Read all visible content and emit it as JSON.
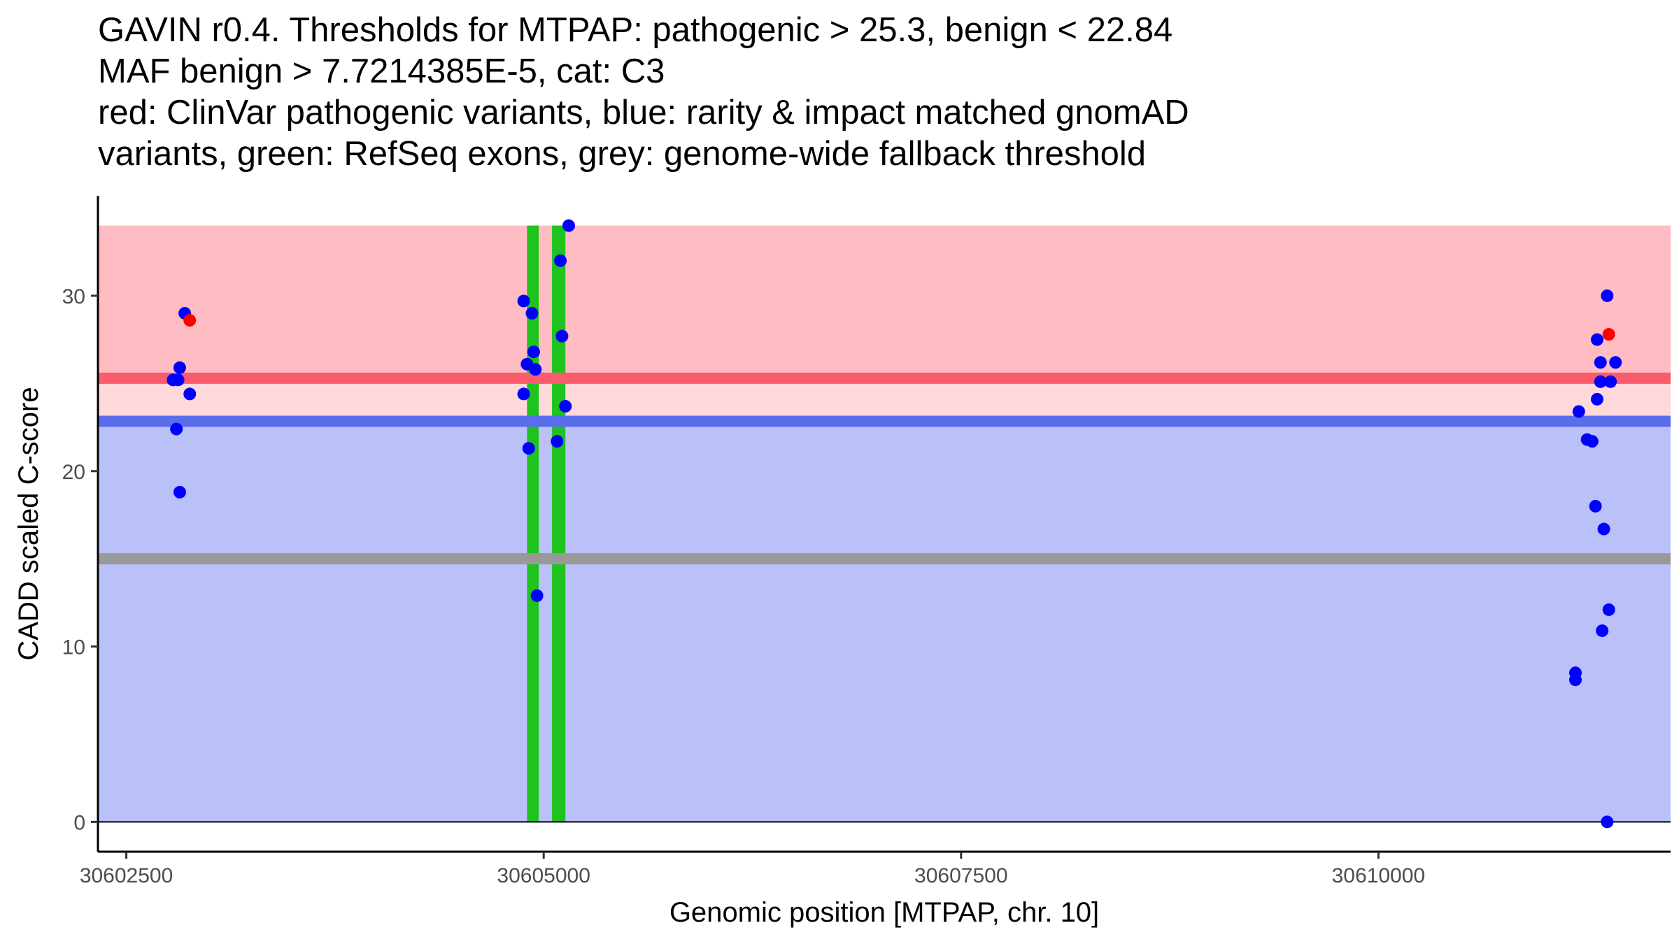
{
  "chart_data": {
    "type": "scatter",
    "title_lines": [
      "GAVIN r0.4. Thresholds for MTPAP: pathogenic > 25.3, benign < 22.84",
      "MAF benign > 7.7214385E-5, cat: C3",
      "red: ClinVar pathogenic variants, blue: rarity & impact matched gnomAD",
      "variants, green: RefSeq exons, grey: genome-wide fallback threshold"
    ],
    "xlabel": "Genomic position [MTPAP, chr. 10]",
    "ylabel": "CADD scaled C-score",
    "xlim": [
      30602330,
      30611750
    ],
    "ylim": [
      -1.7,
      35.7
    ],
    "x_ticks": [
      {
        "value": 30602500,
        "label": "30602500"
      },
      {
        "value": 30605000,
        "label": "30605000"
      },
      {
        "value": 30607500,
        "label": "30607500"
      },
      {
        "value": 30610000,
        "label": "30610000"
      }
    ],
    "y_ticks": [
      {
        "value": 0,
        "label": "0"
      },
      {
        "value": 10,
        "label": "10"
      },
      {
        "value": 20,
        "label": "20"
      },
      {
        "value": 30,
        "label": "30"
      }
    ],
    "thresholds": {
      "pathogenic": 25.3,
      "benign": 22.84,
      "fallback": 15
    },
    "bands": [
      {
        "name": "pathogenic-region",
        "from": 25.3,
        "to": 34,
        "color": "#ffbcc2"
      },
      {
        "name": "uncertain-region",
        "from": 22.84,
        "to": 25.3,
        "color": "#ffd8dc"
      },
      {
        "name": "benign-region",
        "from": 0,
        "to": 22.84,
        "color": "#bac1f9"
      }
    ],
    "lines": [
      {
        "name": "pathogenic-threshold-line",
        "y": 25.3,
        "color": "#fa5b6d"
      },
      {
        "name": "benign-threshold-line",
        "y": 22.84,
        "color": "#5a6eec"
      },
      {
        "name": "fallback-threshold-line",
        "y": 15,
        "color": "#999999"
      }
    ],
    "exons": [
      {
        "start": 30604900,
        "end": 30604970,
        "color": "#1ec31e"
      },
      {
        "start": 30605050,
        "end": 30605130,
        "color": "#1ec31e"
      }
    ],
    "series": [
      {
        "name": "ClinVar pathogenic",
        "color": "#ff0000",
        "points": [
          [
            30602880,
            28.6
          ],
          [
            30611380,
            27.8
          ]
        ]
      },
      {
        "name": "gnomAD matched",
        "color": "#0000ff",
        "points": [
          [
            30602780,
            25.2
          ],
          [
            30602810,
            25.2
          ],
          [
            30602820,
            25.9
          ],
          [
            30602850,
            29.0
          ],
          [
            30602880,
            24.4
          ],
          [
            30602800,
            22.4
          ],
          [
            30602820,
            18.8
          ],
          [
            30604880,
            29.7
          ],
          [
            30604880,
            24.4
          ],
          [
            30604900,
            26.1
          ],
          [
            30604910,
            21.3
          ],
          [
            30604930,
            29.0
          ],
          [
            30604940,
            26.8
          ],
          [
            30604950,
            25.8
          ],
          [
            30604960,
            12.9
          ],
          [
            30605080,
            21.7
          ],
          [
            30605100,
            32.0
          ],
          [
            30605110,
            27.7
          ],
          [
            30605130,
            23.7
          ],
          [
            30605150,
            34.0
          ],
          [
            30611370,
            30.0
          ],
          [
            30611310,
            27.5
          ],
          [
            30611330,
            26.2
          ],
          [
            30611420,
            26.2
          ],
          [
            30611330,
            25.1
          ],
          [
            30611390,
            25.1
          ],
          [
            30611310,
            24.1
          ],
          [
            30611200,
            23.4
          ],
          [
            30611250,
            21.8
          ],
          [
            30611280,
            21.7
          ],
          [
            30611300,
            18.0
          ],
          [
            30611350,
            16.7
          ],
          [
            30611380,
            12.1
          ],
          [
            30611340,
            10.9
          ],
          [
            30611180,
            8.5
          ],
          [
            30611180,
            8.1
          ],
          [
            30611370,
            0.0
          ]
        ]
      }
    ]
  }
}
